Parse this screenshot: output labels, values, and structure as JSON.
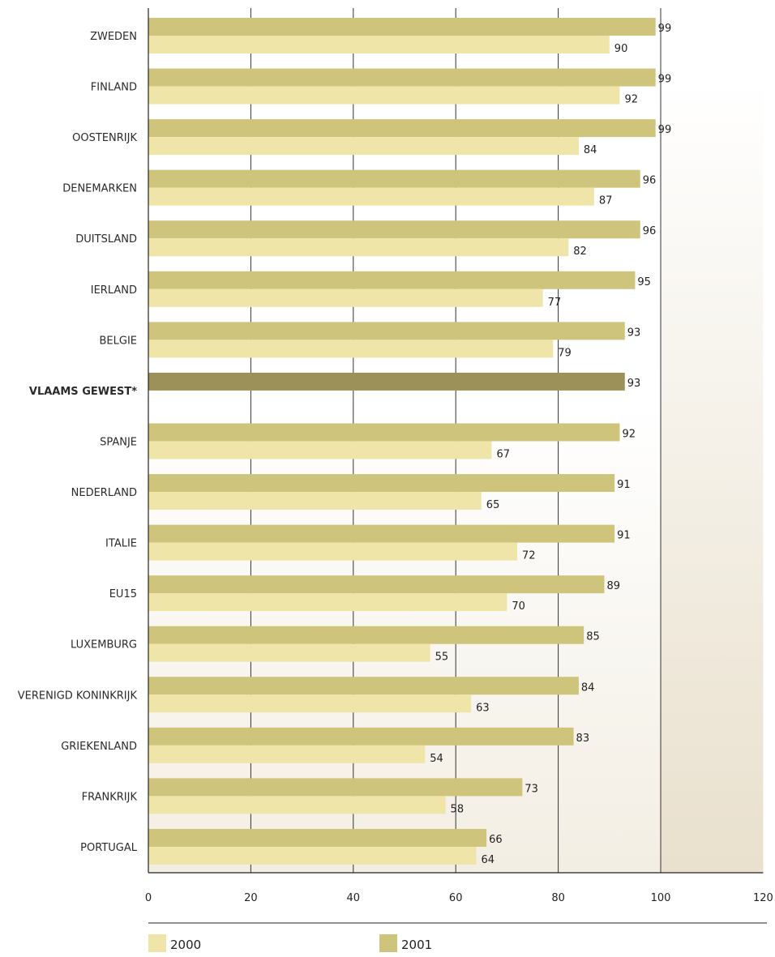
{
  "chart_data": {
    "type": "bar",
    "orientation": "horizontal",
    "categories": [
      "ZWEDEN",
      "FINLAND",
      "OOSTENRIJK",
      "DENEMARKEN",
      "DUITSLAND",
      "IERLAND",
      "BELGIE",
      "VLAAMS GEWEST*",
      "SPANJE",
      "NEDERLAND",
      "ITALIE",
      "EU15",
      "LUXEMBURG",
      "VERENIGD KONINKRIJK",
      "GRIEKENLAND",
      "FRANKRIJK",
      "PORTUGAL"
    ],
    "highlight_category": "VLAAMS GEWEST*",
    "series": [
      {
        "name": "2001",
        "color": "#cfc47c",
        "values": [
          99,
          99,
          99,
          96,
          96,
          95,
          93,
          93,
          92,
          91,
          91,
          89,
          85,
          84,
          83,
          73,
          66
        ]
      },
      {
        "name": "2000",
        "color": "#efe5a9",
        "values": [
          90,
          92,
          84,
          87,
          82,
          77,
          79,
          null,
          67,
          65,
          72,
          70,
          55,
          63,
          54,
          58,
          64
        ]
      }
    ],
    "highlight_color": "#9c9259",
    "xlim": [
      0,
      120
    ],
    "xticks": [
      0,
      20,
      40,
      60,
      80,
      100,
      120
    ],
    "grid": true,
    "legend_position": "bottom",
    "legend": [
      "2000",
      "2001"
    ]
  }
}
